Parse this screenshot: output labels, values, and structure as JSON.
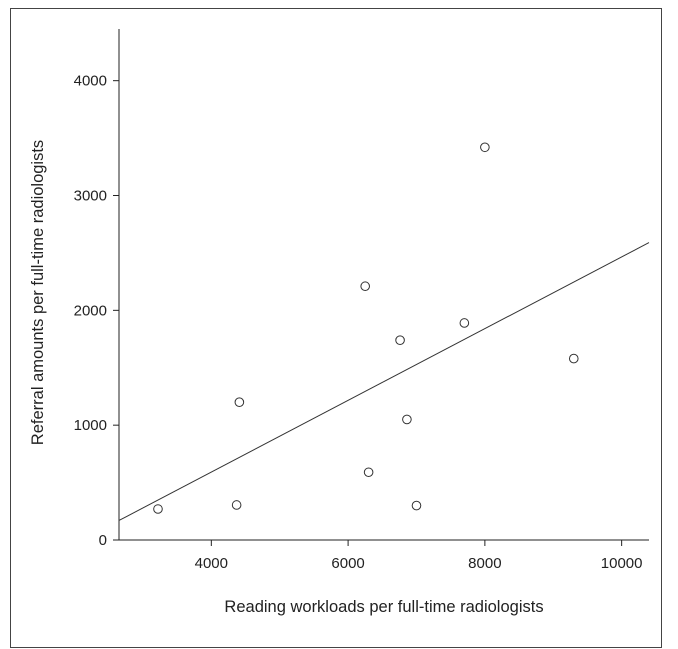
{
  "chart_data": {
    "type": "scatter",
    "title": "",
    "xlabel": "Reading workloads per full-time radiologists",
    "ylabel": "Referral amounts per full-time radiologists",
    "xlim": [
      2650,
      10400
    ],
    "ylim": [
      0,
      4450
    ],
    "xticks": [
      4000,
      6000,
      8000,
      10000
    ],
    "yticks": [
      0,
      1000,
      2000,
      3000,
      4000
    ],
    "grid": false,
    "legend": "none",
    "points": [
      {
        "x": 3220,
        "y": 270
      },
      {
        "x": 4370,
        "y": 305
      },
      {
        "x": 4410,
        "y": 1200
      },
      {
        "x": 6250,
        "y": 2210
      },
      {
        "x": 6300,
        "y": 590
      },
      {
        "x": 6760,
        "y": 1740
      },
      {
        "x": 6860,
        "y": 1050
      },
      {
        "x": 7000,
        "y": 300
      },
      {
        "x": 7700,
        "y": 1890
      },
      {
        "x": 8000,
        "y": 3420
      },
      {
        "x": 9300,
        "y": 1580
      }
    ],
    "trendline": {
      "x": [
        2650,
        10400
      ],
      "y": [
        170,
        2590
      ]
    },
    "colors": {
      "marker_stroke": "#333333",
      "marker_fill": "#ffffff",
      "line": "#333333",
      "axis": "#222222"
    }
  }
}
